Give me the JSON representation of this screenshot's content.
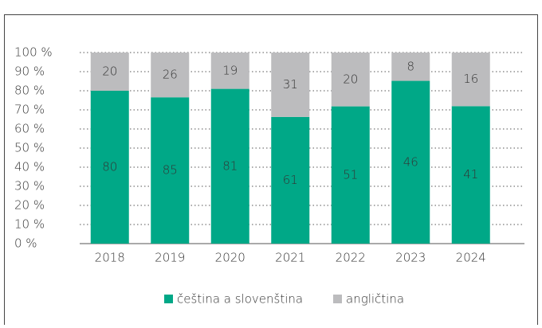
{
  "chart_data": {
    "type": "bar",
    "stacked": "percent",
    "categories": [
      "2018",
      "2019",
      "2020",
      "2021",
      "2022",
      "2023",
      "2024"
    ],
    "series": [
      {
        "name": "čeština a slovenština",
        "color": "#00a887",
        "values": [
          80,
          85,
          81,
          61,
          51,
          46,
          41
        ]
      },
      {
        "name": "angličtina",
        "color": "#bcbcbe",
        "values": [
          20,
          26,
          19,
          31,
          20,
          8,
          16
        ]
      }
    ],
    "ylim": [
      0,
      100
    ],
    "yticks": [
      {
        "value": 0,
        "label": "0 %"
      },
      {
        "value": 10,
        "label": "10 %"
      },
      {
        "value": 20,
        "label": "20 %"
      },
      {
        "value": 30,
        "label": "30 %"
      },
      {
        "value": 40,
        "label": "40 %"
      },
      {
        "value": 50,
        "label": "50 %"
      },
      {
        "value": 60,
        "label": "60 %"
      },
      {
        "value": 70,
        "label": "70 %"
      },
      {
        "value": 80,
        "label": "80 %"
      },
      {
        "value": 90,
        "label": "90 %"
      },
      {
        "value": 100,
        "label": "100 %"
      }
    ],
    "grid": true,
    "legend": "bottom"
  }
}
